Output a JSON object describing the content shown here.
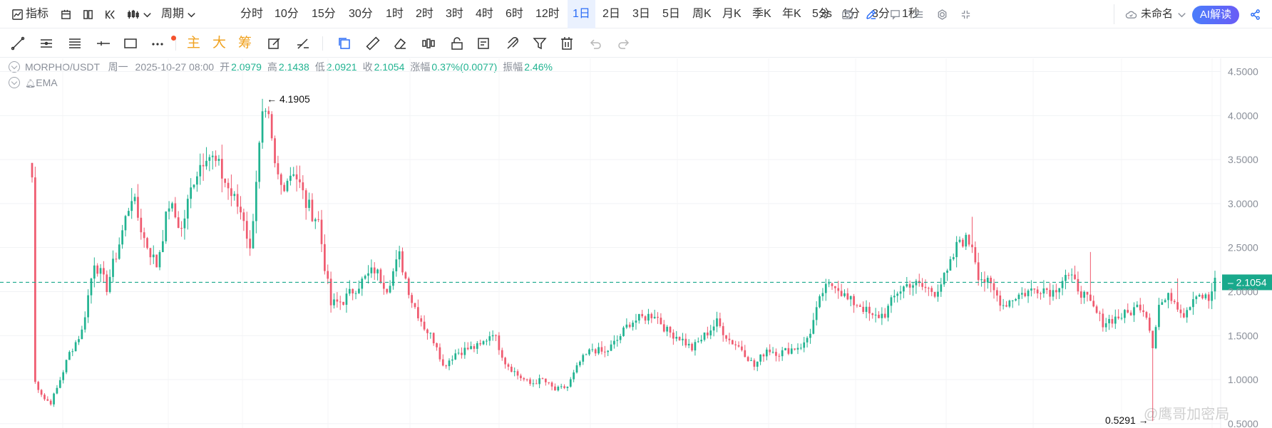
{
  "topbar": {
    "indicator_label": "指标",
    "period_label": "周期",
    "intervals": [
      "分时",
      "10分",
      "15分",
      "30分",
      "1时",
      "2时",
      "3时",
      "4时",
      "6时",
      "12时",
      "1日",
      "2日",
      "3日",
      "5日",
      "周K",
      "月K",
      "季K",
      "年K",
      "5分",
      "1分",
      "3分",
      "1秒"
    ],
    "active_interval": "1日",
    "refresh_label": "3s",
    "layout_name": "未命名",
    "ai_label": "AI解读"
  },
  "drawbar": {
    "text_tools": [
      "主",
      "大",
      "筹"
    ]
  },
  "info": {
    "symbol": "MORPHO/USDT",
    "weekday": "周一",
    "datetime": "2025-10-27 08:00",
    "open_label": "开",
    "open": "2.0979",
    "high_label": "高",
    "high": "2.1438",
    "low_label": "低",
    "low": "2.0921",
    "close_label": "收",
    "close": "2.1054",
    "change_label": "涨幅",
    "change": "0.37%(0.0077)",
    "amplitude_label": "振幅",
    "amplitude": "2.46%",
    "indicator": "EMA"
  },
  "watermark": "@鹰哥加密局",
  "colors": {
    "up": "#21b391",
    "down": "#ef5a6f",
    "accent": "#2a6cf6",
    "last_price": "#19a98c"
  },
  "chart_data": {
    "type": "candlestick",
    "series_name": "MORPHO/USDT",
    "interval": "1日",
    "ylim": [
      0.45,
      4.65
    ],
    "y_ticks": [
      "4.5000",
      "4.0000",
      "3.5000",
      "3.0000",
      "2.5000",
      "2.0000",
      "1.5000",
      "1.0000",
      "0.5000"
    ],
    "last_price": "2.1054",
    "max_label": "4.1905",
    "min_label": "0.5291",
    "grid": true,
    "anchors": [
      [
        0,
        3.3
      ],
      [
        1,
        0.97
      ],
      [
        4,
        0.78
      ],
      [
        6,
        0.74
      ],
      [
        8,
        0.9
      ],
      [
        12,
        1.3
      ],
      [
        16,
        1.55
      ],
      [
        20,
        2.35
      ],
      [
        24,
        2.05
      ],
      [
        28,
        2.55
      ],
      [
        32,
        3.1
      ],
      [
        36,
        2.6
      ],
      [
        40,
        2.3
      ],
      [
        44,
        3.0
      ],
      [
        48,
        2.7
      ],
      [
        52,
        3.3
      ],
      [
        56,
        3.6
      ],
      [
        60,
        3.4
      ],
      [
        64,
        3.1
      ],
      [
        68,
        2.85
      ],
      [
        70,
        2.45
      ],
      [
        72,
        3.3
      ],
      [
        74,
        3.95
      ],
      [
        76,
        3.9
      ],
      [
        78,
        3.4
      ],
      [
        80,
        3.2
      ],
      [
        84,
        3.4
      ],
      [
        88,
        3.0
      ],
      [
        92,
        2.8
      ],
      [
        94,
        2.3
      ],
      [
        96,
        1.85
      ],
      [
        100,
        1.9
      ],
      [
        104,
        2.05
      ],
      [
        110,
        2.25
      ],
      [
        114,
        2.05
      ],
      [
        118,
        2.4
      ],
      [
        122,
        1.9
      ],
      [
        126,
        1.6
      ],
      [
        130,
        1.4
      ],
      [
        132,
        1.15
      ],
      [
        136,
        1.3
      ],
      [
        140,
        1.35
      ],
      [
        144,
        1.38
      ],
      [
        148,
        1.55
      ],
      [
        152,
        1.2
      ],
      [
        156,
        1.05
      ],
      [
        160,
        0.95
      ],
      [
        164,
        1.0
      ],
      [
        168,
        0.88
      ],
      [
        172,
        0.92
      ],
      [
        176,
        1.2
      ],
      [
        180,
        1.35
      ],
      [
        184,
        1.3
      ],
      [
        188,
        1.45
      ],
      [
        192,
        1.65
      ],
      [
        196,
        1.7
      ],
      [
        200,
        1.75
      ],
      [
        204,
        1.55
      ],
      [
        208,
        1.48
      ],
      [
        212,
        1.35
      ],
      [
        216,
        1.5
      ],
      [
        220,
        1.65
      ],
      [
        224,
        1.45
      ],
      [
        228,
        1.35
      ],
      [
        232,
        1.15
      ],
      [
        236,
        1.35
      ],
      [
        240,
        1.3
      ],
      [
        244,
        1.35
      ],
      [
        248,
        1.4
      ],
      [
        250,
        1.55
      ],
      [
        254,
        2.0
      ],
      [
        258,
        2.1
      ],
      [
        262,
        1.9
      ],
      [
        266,
        1.85
      ],
      [
        270,
        1.7
      ],
      [
        274,
        1.75
      ],
      [
        278,
        2.0
      ],
      [
        282,
        2.1
      ],
      [
        286,
        2.05
      ],
      [
        290,
        2.0
      ],
      [
        294,
        2.2
      ],
      [
        298,
        2.6
      ],
      [
        302,
        2.55
      ],
      [
        304,
        2.2
      ],
      [
        308,
        2.05
      ],
      [
        312,
        1.85
      ],
      [
        316,
        1.95
      ],
      [
        320,
        2.0
      ],
      [
        324,
        2.05
      ],
      [
        328,
        2.0
      ],
      [
        332,
        2.2
      ],
      [
        336,
        2.05
      ],
      [
        340,
        1.85
      ],
      [
        344,
        1.65
      ],
      [
        348,
        1.7
      ],
      [
        352,
        1.75
      ],
      [
        356,
        1.85
      ],
      [
        358,
        1.75
      ],
      [
        360,
        1.4
      ],
      [
        362,
        1.85
      ],
      [
        366,
        1.95
      ],
      [
        370,
        1.75
      ],
      [
        374,
        2.0
      ],
      [
        378,
        1.9
      ],
      [
        380,
        2.1
      ]
    ],
    "spikes": [
      {
        "index": 0,
        "high": 3.3
      },
      {
        "index": 74,
        "high": 4.1905
      },
      {
        "index": 302,
        "high": 2.85
      },
      {
        "index": 340,
        "high": 2.45
      },
      {
        "index": 360,
        "low": 0.5291,
        "high": 1.5
      },
      {
        "index": 368,
        "high": 2.15
      }
    ]
  }
}
